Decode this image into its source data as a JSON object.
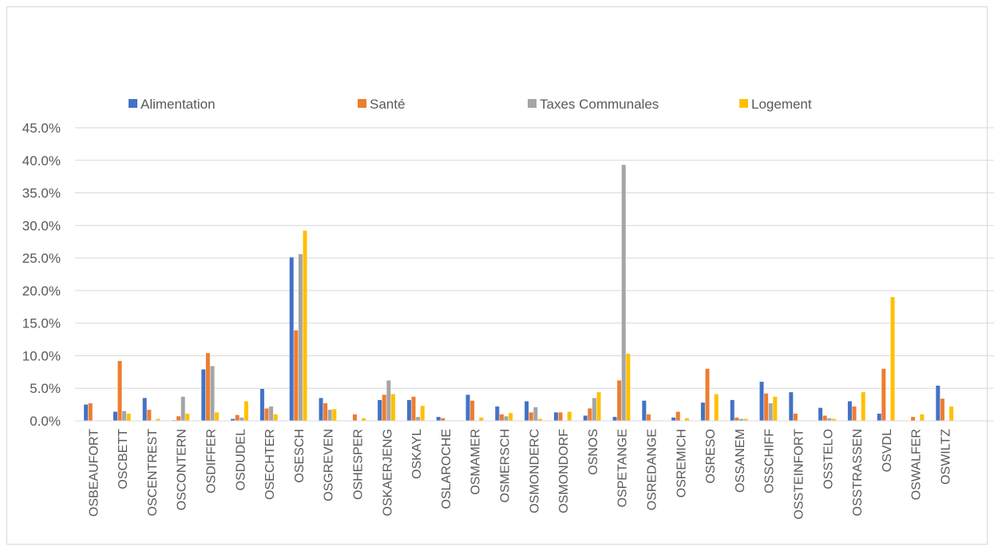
{
  "chart_data": {
    "type": "bar",
    "title": "",
    "xlabel": "",
    "ylabel": "",
    "ylim": [
      0,
      45
    ],
    "y_ticks": [
      "0.0%",
      "5.0%",
      "10.0%",
      "15.0%",
      "20.0%",
      "25.0%",
      "30.0%",
      "35.0%",
      "40.0%",
      "45.0%"
    ],
    "grid": true,
    "legend_position": "top",
    "categories": [
      "OSBEAUFORT",
      "OSCBETT",
      "OSCENTREST",
      "OSCONTERN",
      "OSDIFFER",
      "OSDUDEL",
      "OSECHTER",
      "OSESCH",
      "OSGREVEN",
      "OSHESPER",
      "OSKAERJENG",
      "OSKAYL",
      "OSLAROCHE",
      "OSMAMER",
      "OSMERSCH",
      "OSMONDERC",
      "OSMONDORF",
      "OSNOS",
      "OSPETANGE",
      "OSREDANGE",
      "OSREMICH",
      "OSRESO",
      "OSSANEM",
      "OSSCHIFF",
      "OSSTEINFORT",
      "OSSTELO",
      "OSSTRASSEN",
      "OSVDL",
      "OSWALFER",
      "OSWILTZ"
    ],
    "series": [
      {
        "name": "Alimentation",
        "color": "#4472C4",
        "values": [
          2.5,
          1.4,
          3.5,
          0.1,
          7.9,
          0.3,
          4.9,
          25.1,
          3.5,
          0.0,
          3.2,
          3.2,
          0.6,
          4.0,
          2.2,
          3.0,
          1.3,
          0.8,
          0.6,
          3.1,
          0.5,
          2.8,
          3.2,
          6.0,
          4.4,
          2.0,
          3.0,
          1.1,
          0.0,
          5.4
        ]
      },
      {
        "name": "Santé",
        "color": "#ED7D31",
        "values": [
          2.7,
          9.2,
          1.7,
          0.7,
          10.4,
          0.9,
          1.9,
          13.9,
          2.7,
          1.0,
          4.0,
          3.7,
          0.4,
          3.1,
          1.0,
          1.3,
          1.3,
          1.9,
          6.2,
          1.0,
          1.4,
          8.0,
          0.5,
          4.2,
          1.1,
          0.8,
          2.2,
          8.0,
          0.6,
          3.4
        ]
      },
      {
        "name": "Taxes Communales",
        "color": "#A5A5A5",
        "values": [
          0.0,
          1.5,
          0.0,
          3.7,
          8.4,
          0.5,
          2.2,
          25.6,
          1.7,
          0.0,
          6.2,
          0.6,
          0.0,
          0.0,
          0.7,
          2.1,
          0.0,
          3.5,
          39.3,
          0.0,
          0.0,
          0.0,
          0.3,
          2.7,
          0.0,
          0.4,
          0.0,
          0.0,
          0.0,
          0.0
        ]
      },
      {
        "name": "Logement",
        "color": "#FFC000",
        "values": [
          0.0,
          1.1,
          0.3,
          1.1,
          1.3,
          3.0,
          1.0,
          29.2,
          1.8,
          0.4,
          4.1,
          2.3,
          0.0,
          0.5,
          1.2,
          0.3,
          1.4,
          4.4,
          10.3,
          0.0,
          0.4,
          4.1,
          0.3,
          3.7,
          0.0,
          0.3,
          4.4,
          19.0,
          1.0,
          2.2
        ]
      }
    ]
  }
}
